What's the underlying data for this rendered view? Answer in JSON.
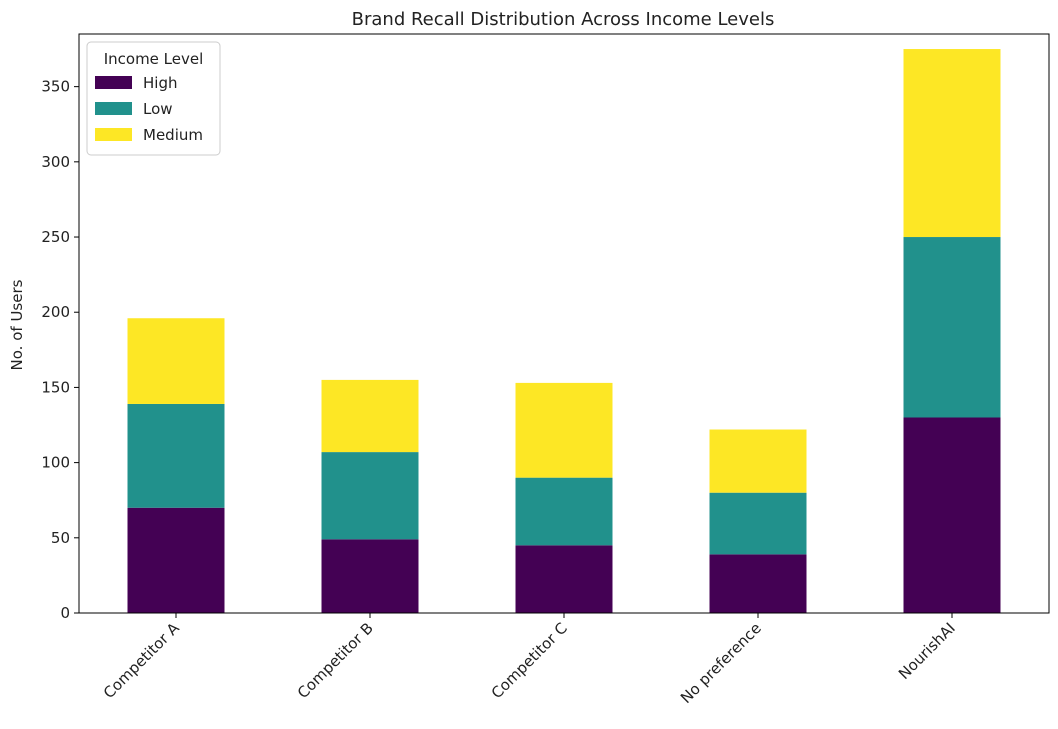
{
  "chart_data": {
    "type": "bar",
    "stacked": true,
    "title": "Brand Recall Distribution Across Income Levels",
    "xlabel": "",
    "ylabel": "No. of Users",
    "categories": [
      "Competitor A",
      "Competitor B",
      "Competitor C",
      "No preference",
      "NourishAI"
    ],
    "series": [
      {
        "name": "High",
        "values": [
          70,
          49,
          45,
          39,
          130
        ],
        "color": "#440154"
      },
      {
        "name": "Low",
        "values": [
          69,
          58,
          45,
          41,
          120
        ],
        "color": "#21918c"
      },
      {
        "name": "Medium",
        "values": [
          57,
          48,
          63,
          42,
          125
        ],
        "color": "#fde725"
      }
    ],
    "ylim": [
      0,
      385
    ],
    "yticks": [
      0,
      50,
      100,
      150,
      200,
      250,
      300,
      350
    ],
    "grid": false,
    "legend": {
      "title": "Income Level",
      "placement": "top-left"
    },
    "xtick_rotation": 45
  }
}
